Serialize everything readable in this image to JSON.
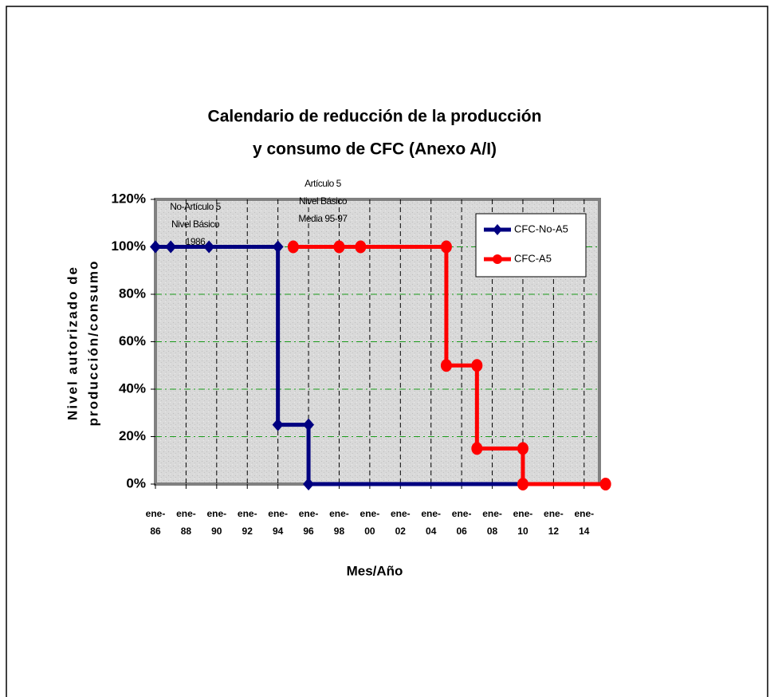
{
  "chart_data": {
    "type": "line",
    "title": [
      "Calendario de reducción de la producción",
      "y consumo de CFC (Anexo A/I)"
    ],
    "xlabel": "Mes/Año",
    "ylabel": [
      "Nivel autorizado de",
      "producción/consumo"
    ],
    "xlim": [
      1986,
      2015
    ],
    "xticks": [
      {
        "value": 1986,
        "label": "ene-86"
      },
      {
        "value": 1988,
        "label": "ene-88"
      },
      {
        "value": 1990,
        "label": "ene-90"
      },
      {
        "value": 1992,
        "label": "ene-92"
      },
      {
        "value": 1994,
        "label": "ene-94"
      },
      {
        "value": 1996,
        "label": "ene-96"
      },
      {
        "value": 1998,
        "label": "ene-98"
      },
      {
        "value": 2000,
        "label": "ene-00"
      },
      {
        "value": 2002,
        "label": "ene-02"
      },
      {
        "value": 2004,
        "label": "ene-04"
      },
      {
        "value": 2006,
        "label": "ene-06"
      },
      {
        "value": 2008,
        "label": "ene-08"
      },
      {
        "value": 2010,
        "label": "ene-10"
      },
      {
        "value": 2012,
        "label": "ene-12"
      },
      {
        "value": 2014,
        "label": "ene-14"
      }
    ],
    "ylim": [
      0,
      120
    ],
    "yticks": [
      {
        "value": 0,
        "label": "0%"
      },
      {
        "value": 20,
        "label": "20%"
      },
      {
        "value": 40,
        "label": "40%"
      },
      {
        "value": 60,
        "label": "60%"
      },
      {
        "value": 80,
        "label": "80%"
      },
      {
        "value": 100,
        "label": "100%"
      },
      {
        "value": 120,
        "label": "120%"
      }
    ],
    "grid": true,
    "legend": "upper right",
    "series": [
      {
        "name": "CFC-No-A5",
        "color": "#000080",
        "marker": "diamond",
        "x": [
          1986,
          1987,
          1989.5,
          1994,
          1994,
          1996,
          1996,
          2010
        ],
        "values": [
          100,
          100,
          100,
          100,
          25,
          25,
          0,
          0
        ]
      },
      {
        "name": "CFC-A5",
        "color": "#ff0000",
        "marker": "circle",
        "x": [
          1995,
          1998,
          1999.4,
          2005,
          2005,
          2007,
          2007,
          2010,
          2010,
          2015.4
        ],
        "values": [
          100,
          100,
          100,
          100,
          50,
          50,
          15,
          15,
          0,
          0
        ]
      }
    ],
    "annotations": [
      [
        "No-Artículo 5",
        "Nivel Básico",
        "1986"
      ],
      [
        "Artículo 5",
        "Nivel Básico",
        "Media 95-97"
      ]
    ]
  }
}
